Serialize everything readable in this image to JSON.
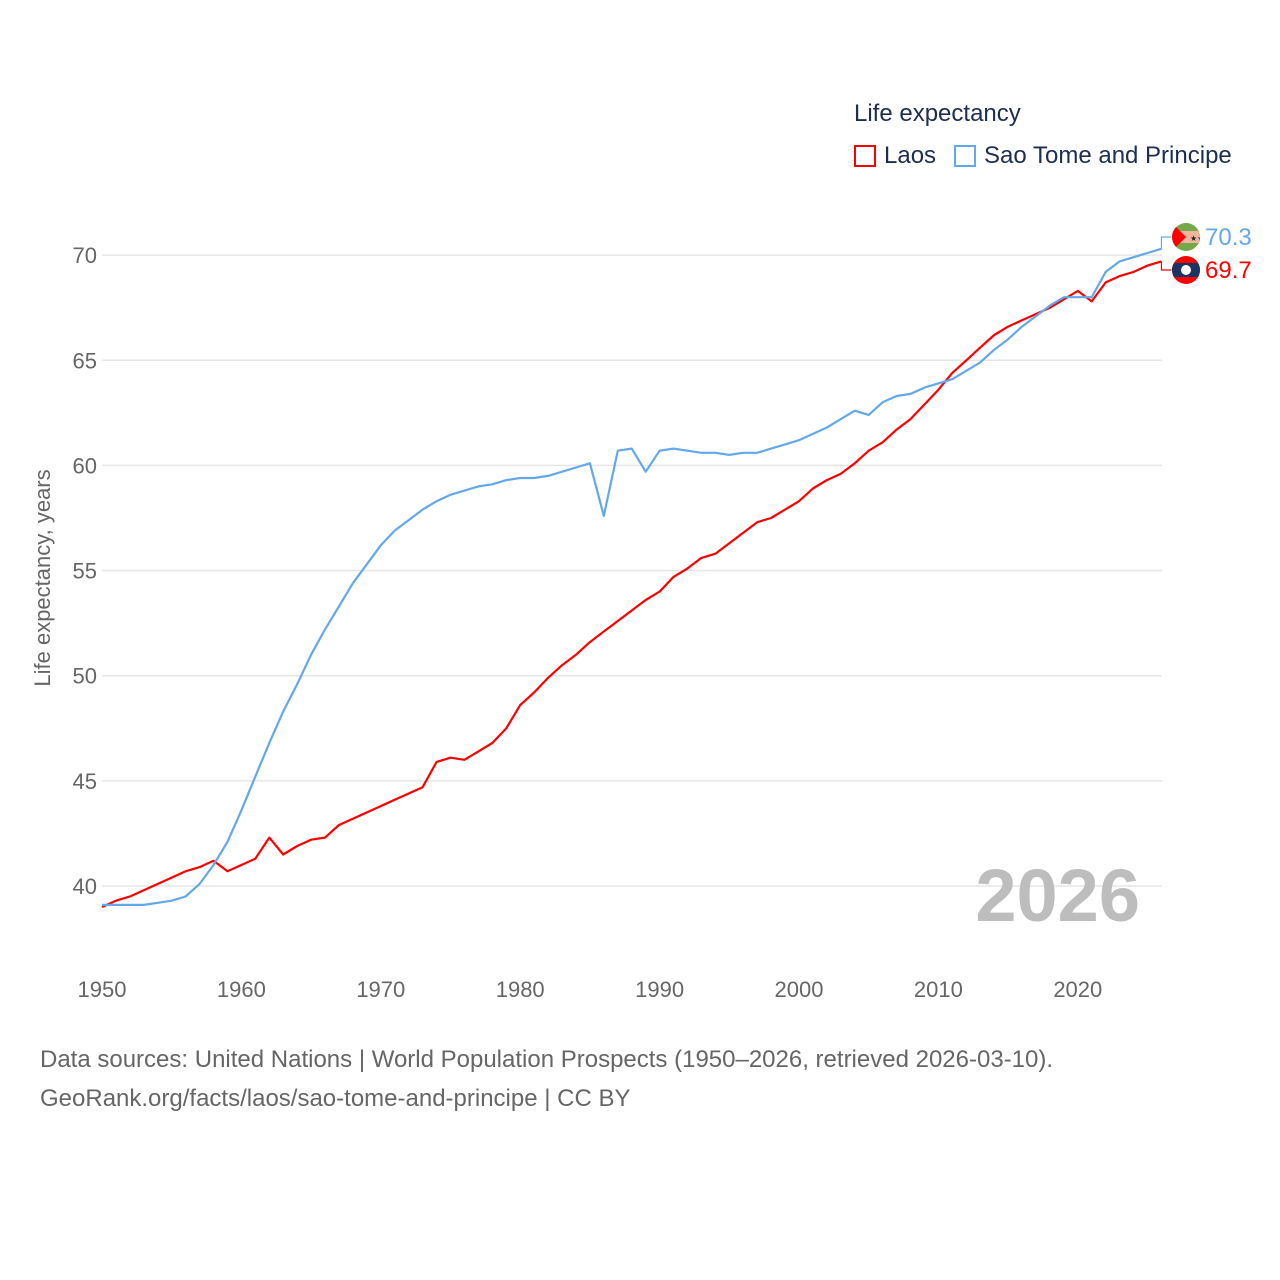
{
  "chart_data": {
    "type": "line",
    "title": "Life expectancy",
    "ylabel": "Life expectancy, years",
    "xlabel": "",
    "xlim": [
      1950,
      2026
    ],
    "ylim": [
      38,
      72
    ],
    "x_ticks": [
      1950,
      1960,
      1970,
      1980,
      1990,
      2000,
      2010,
      2020
    ],
    "y_ticks": [
      40,
      45,
      50,
      55,
      60,
      65,
      70
    ],
    "grid": true,
    "legend_placement": "top-right",
    "year_label": "2026",
    "x": [
      1950,
      1951,
      1952,
      1953,
      1954,
      1955,
      1956,
      1957,
      1958,
      1959,
      1960,
      1961,
      1962,
      1963,
      1964,
      1965,
      1966,
      1967,
      1968,
      1969,
      1970,
      1971,
      1972,
      1973,
      1974,
      1975,
      1976,
      1977,
      1978,
      1979,
      1980,
      1981,
      1982,
      1983,
      1984,
      1985,
      1986,
      1987,
      1988,
      1989,
      1990,
      1991,
      1992,
      1993,
      1994,
      1995,
      1996,
      1997,
      1998,
      1999,
      2000,
      2001,
      2002,
      2003,
      2004,
      2005,
      2006,
      2007,
      2008,
      2009,
      2010,
      2011,
      2012,
      2013,
      2014,
      2015,
      2016,
      2017,
      2018,
      2019,
      2020,
      2021,
      2022,
      2023,
      2024,
      2025,
      2026
    ],
    "series": [
      {
        "name": "Laos",
        "color": "#ff0000",
        "end_label": "69.7",
        "values": [
          39.0,
          39.3,
          39.5,
          39.8,
          40.1,
          40.4,
          40.7,
          40.9,
          41.2,
          40.7,
          41.0,
          41.3,
          42.3,
          41.5,
          41.9,
          42.2,
          42.3,
          42.9,
          43.2,
          43.5,
          43.8,
          44.1,
          44.4,
          44.7,
          45.9,
          46.1,
          46.0,
          46.4,
          46.8,
          47.5,
          48.6,
          49.2,
          49.9,
          50.5,
          51.0,
          51.6,
          52.1,
          52.6,
          53.1,
          53.6,
          54.0,
          54.7,
          55.1,
          55.6,
          55.8,
          56.3,
          56.8,
          57.3,
          57.5,
          57.9,
          58.3,
          58.9,
          59.3,
          59.6,
          60.1,
          60.7,
          61.1,
          61.7,
          62.2,
          62.9,
          63.6,
          64.4,
          65.0,
          65.6,
          66.2,
          66.6,
          66.9,
          67.2,
          67.5,
          67.9,
          68.3,
          67.8,
          68.7,
          69.0,
          69.2,
          69.5,
          69.7
        ]
      },
      {
        "name": "Sao Tome and Principe",
        "color": "#64a8ea",
        "end_label": "70.3",
        "values": [
          39.1,
          39.1,
          39.1,
          39.1,
          39.2,
          39.3,
          39.5,
          40.1,
          41.0,
          42.1,
          43.6,
          45.2,
          46.8,
          48.3,
          49.6,
          51.0,
          52.2,
          53.3,
          54.4,
          55.3,
          56.2,
          56.9,
          57.4,
          57.9,
          58.3,
          58.6,
          58.8,
          59.0,
          59.1,
          59.3,
          59.4,
          59.4,
          59.5,
          59.7,
          59.9,
          60.1,
          57.6,
          60.7,
          60.8,
          59.7,
          60.7,
          60.8,
          60.7,
          60.6,
          60.6,
          60.5,
          60.6,
          60.6,
          60.8,
          61.0,
          61.2,
          61.5,
          61.8,
          62.2,
          62.6,
          62.4,
          63.0,
          63.3,
          63.4,
          63.7,
          63.9,
          64.1,
          64.5,
          64.9,
          65.5,
          66.0,
          66.6,
          67.1,
          67.6,
          68.0,
          68.0,
          68.0,
          69.2,
          69.7,
          69.9,
          70.1,
          70.3
        ]
      }
    ]
  },
  "source": {
    "line1": "Data sources: United Nations | World Population Prospects (1950–2026, retrieved 2026-03-10).",
    "line2": "GeoRank.org/facts/laos/sao-tome-and-principe | CC BY"
  }
}
